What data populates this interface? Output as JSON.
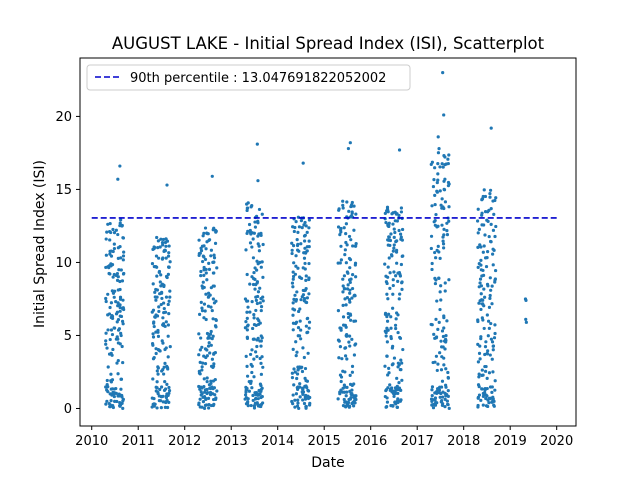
{
  "chart_data": {
    "type": "scatter",
    "title": "AUGUST LAKE - Initial Spread Index (ISI), Scatterplot",
    "xlabel": "Date",
    "ylabel": "Initial Spread Index (ISI)",
    "x_axis_type": "date",
    "xlim": [
      "2009-10-01",
      "2020-06-01"
    ],
    "ylim": [
      -1.2,
      24.0
    ],
    "x_ticks": [
      "2010",
      "2011",
      "2012",
      "2013",
      "2014",
      "2015",
      "2016",
      "2017",
      "2018",
      "2019",
      "2020"
    ],
    "y_ticks": [
      0,
      5,
      10,
      15,
      20
    ],
    "grid": false,
    "legend": {
      "placement": "top-left",
      "entries": [
        "90th percentile : 13.047691822052002"
      ]
    },
    "reference_line": {
      "label": "90th percentile : 13.047691822052002",
      "value": 13.047691822052002,
      "x_range": [
        "2010-01-01",
        "2020-01-01"
      ],
      "color": "#0000cc",
      "style": "dashed"
    },
    "point_color": "#1f77b4",
    "season_clusters": [
      {
        "start": "2010-04-20",
        "end": "2010-09-10",
        "max": 16.6,
        "peak_points": [
          {
            "x": "2010-08-10",
            "y": 16.6
          },
          {
            "x": "2010-07-25",
            "y": 15.7
          }
        ]
      },
      {
        "start": "2011-04-20",
        "end": "2011-09-10",
        "max": 15.3,
        "peak_points": [
          {
            "x": "2011-08-15",
            "y": 15.3
          }
        ]
      },
      {
        "start": "2012-04-20",
        "end": "2012-09-10",
        "max": 15.9,
        "peak_points": [
          {
            "x": "2012-08-05",
            "y": 15.9
          }
        ]
      },
      {
        "start": "2013-04-20",
        "end": "2013-09-10",
        "max": 18.1,
        "peak_points": [
          {
            "x": "2013-07-25",
            "y": 18.1
          },
          {
            "x": "2013-07-30",
            "y": 15.6
          }
        ]
      },
      {
        "start": "2014-04-20",
        "end": "2014-09-10",
        "max": 16.8,
        "peak_points": [
          {
            "x": "2014-07-20",
            "y": 16.8
          }
        ]
      },
      {
        "start": "2015-04-20",
        "end": "2015-09-10",
        "max": 18.2,
        "peak_points": [
          {
            "x": "2015-07-25",
            "y": 18.2
          },
          {
            "x": "2015-07-10",
            "y": 17.8
          }
        ]
      },
      {
        "start": "2016-04-20",
        "end": "2016-09-10",
        "max": 17.7,
        "peak_points": [
          {
            "x": "2016-08-15",
            "y": 17.7
          }
        ]
      },
      {
        "start": "2017-04-20",
        "end": "2017-09-10",
        "max": 23.0,
        "peak_points": [
          {
            "x": "2017-07-20",
            "y": 23.0
          },
          {
            "x": "2017-07-28",
            "y": 20.1
          },
          {
            "x": "2017-06-15",
            "y": 18.6
          }
        ]
      },
      {
        "start": "2018-04-20",
        "end": "2018-09-10",
        "max": 19.2,
        "peak_points": [
          {
            "x": "2018-08-05",
            "y": 19.2
          }
        ]
      }
    ],
    "isolated_points": [
      {
        "x": "2019-05-01",
        "y": 7.5
      },
      {
        "x": "2019-05-05",
        "y": 7.4
      },
      {
        "x": "2019-05-03",
        "y": 6.1
      },
      {
        "x": "2019-05-08",
        "y": 5.9
      }
    ]
  }
}
